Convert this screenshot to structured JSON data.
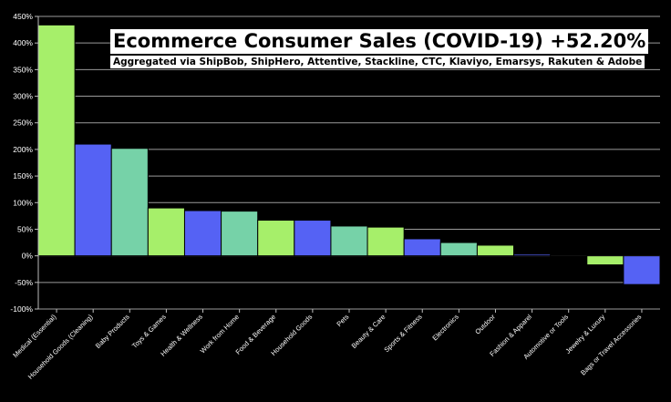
{
  "chart_data": {
    "type": "bar",
    "title": "Ecommerce Consumer Sales (COVID-19) +52.20%",
    "subtitle": "Aggregated via ShipBob, ShipHero, Attentive, Stackline, CTC, Klaviyo, Emarsys, Rakuten & Adobe",
    "xlabel": "",
    "ylabel": "",
    "ylim": [
      -100,
      450
    ],
    "yticks": [
      "-100%",
      "-50%",
      "0%",
      "50%",
      "100%",
      "150%",
      "200%",
      "250%",
      "300%",
      "350%",
      "400%",
      "450%"
    ],
    "grid": true,
    "categories": [
      "Medical (Essential)",
      "Household Goods (Cleaning)",
      "Baby Products",
      "Toys & Games",
      "Health & Wellness",
      "Work from Home",
      "Food & Beverage",
      "Household Goods",
      "Pets",
      "Beauty & Care",
      "Sports & Fitness",
      "Electronics",
      "Outdoor",
      "Fashion & Apparel",
      "Automotive or Tools",
      "Jewelry & Luxury",
      "Bags or Travel Accessories"
    ],
    "values": [
      434,
      210,
      202,
      90,
      85,
      84,
      67,
      67,
      56,
      54,
      32,
      25,
      20,
      3,
      -1,
      -17,
      -54
    ],
    "colors": [
      "#a6ef6a",
      "#5562f4",
      "#76d2a8",
      "#a6ef6a",
      "#5562f4",
      "#76d2a8",
      "#a6ef6a",
      "#5562f4",
      "#76d2a8",
      "#a6ef6a",
      "#5562f4",
      "#76d2a8",
      "#a6ef6a",
      "#5562f4",
      "#76d2a8",
      "#a6ef6a",
      "#5562f4"
    ]
  }
}
